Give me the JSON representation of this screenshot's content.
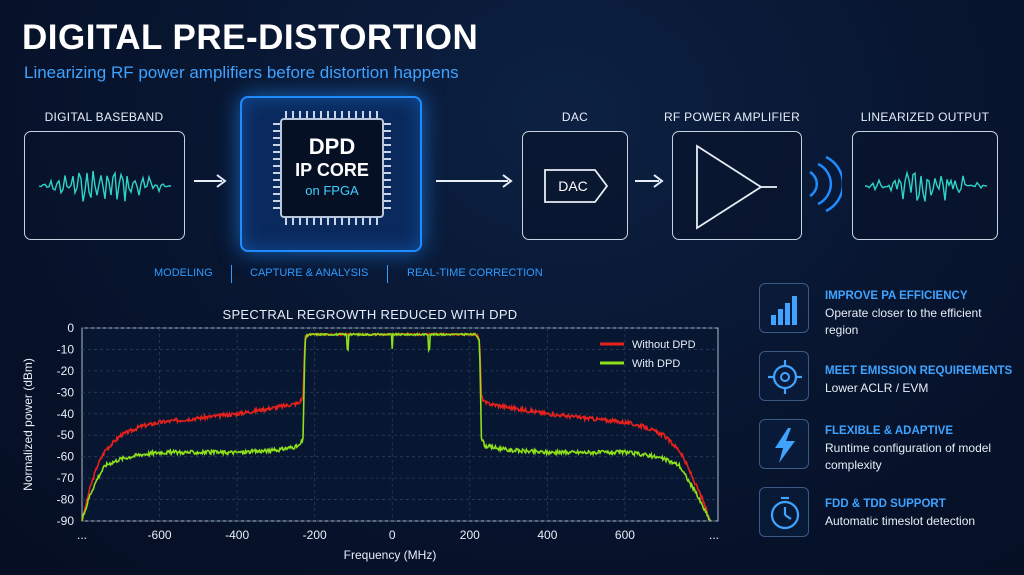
{
  "header": {
    "title": "DIGITAL PRE-DISTORTION",
    "subtitle": "Linearizing RF power amplifiers before distortion happens"
  },
  "pipeline": {
    "baseband_label": "DIGITAL BASEBAND",
    "dpd_line1": "DPD",
    "dpd_line2": "IP CORE",
    "dpd_line3": "on FPGA",
    "dac_label": "DAC",
    "dac_block": "DAC",
    "pa_label": "RF POWER AMPLIFIER",
    "output_label": "LINEARIZED OUTPUT",
    "steps": [
      "MODELING",
      "CAPTURE & ANALYSIS",
      "REAL-TIME CORRECTION"
    ]
  },
  "colors": {
    "accent": "#3fa3ff",
    "wave": "#2fd3c8",
    "without_dpd": "#e8211c",
    "with_dpd": "#8ee01a"
  },
  "features": [
    {
      "icon": "signal-bars-icon",
      "title": "IMPROVE PA EFFICIENCY",
      "desc": "Operate closer to the efficient region"
    },
    {
      "icon": "target-icon",
      "title": "MEET EMISSION REQUIREMENTS",
      "desc": "Lower ACLR / EVM"
    },
    {
      "icon": "lightning-icon",
      "title": "FLEXIBLE & ADAPTIVE",
      "desc": "Runtime configuration of model complexity"
    },
    {
      "icon": "stopwatch-icon",
      "title": "FDD & TDD SUPPORT",
      "desc": "Automatic timeslot detection"
    }
  ],
  "chart_data": {
    "type": "line",
    "title": "SPECTRAL REGROWTH REDUCED WITH DPD",
    "xlabel": "Frequency (MHz)",
    "ylabel": "Normalized power (dBm)",
    "xlim": [
      -800,
      840
    ],
    "ylim": [
      -90,
      0
    ],
    "xticks": [
      -600,
      -400,
      -200,
      0,
      200,
      400,
      600
    ],
    "xtick_labels": [
      "-600",
      "-400",
      "-200",
      "0",
      "200",
      "400",
      "600"
    ],
    "x_edge_labels": [
      "...",
      "..."
    ],
    "yticks": [
      0,
      -10,
      -20,
      -30,
      -40,
      -50,
      -60,
      -70,
      -80,
      -90
    ],
    "ytick_labels": [
      "0",
      "-10",
      "-20",
      "-30",
      "-40",
      "-50",
      "-60",
      "-70",
      "-80",
      "-90"
    ],
    "grid": true,
    "legend": "top-right",
    "series": [
      {
        "name": "Without DPD",
        "color": "#e8211c",
        "x": [
          -800,
          -780,
          -760,
          -740,
          -700,
          -650,
          -600,
          -500,
          -400,
          -300,
          -240,
          -230,
          -225,
          -215,
          215,
          225,
          230,
          240,
          300,
          400,
          500,
          600,
          650,
          700,
          740,
          760,
          780,
          800,
          820
        ],
        "y": [
          -90,
          -75,
          -64,
          -57,
          -50,
          -46,
          -44,
          -42,
          -40,
          -37,
          -35,
          -32,
          -5,
          -3,
          -3,
          -5,
          -32,
          -35,
          -37,
          -40,
          -42,
          -44,
          -46,
          -50,
          -57,
          -64,
          -72,
          -80,
          -90
        ]
      },
      {
        "name": "With DPD",
        "color": "#8ee01a",
        "x": [
          -800,
          -780,
          -760,
          -740,
          -700,
          -650,
          -600,
          -500,
          -400,
          -300,
          -240,
          -230,
          -225,
          -215,
          215,
          225,
          230,
          240,
          300,
          400,
          500,
          600,
          650,
          700,
          740,
          760,
          780,
          800,
          820
        ],
        "y": [
          -90,
          -78,
          -70,
          -64,
          -61,
          -59,
          -58,
          -58,
          -58,
          -57,
          -55,
          -52,
          -5,
          -3,
          -3,
          -5,
          -52,
          -55,
          -57,
          -58,
          -58,
          -58,
          -59,
          -61,
          -64,
          -70,
          -76,
          -83,
          -90
        ]
      }
    ]
  }
}
